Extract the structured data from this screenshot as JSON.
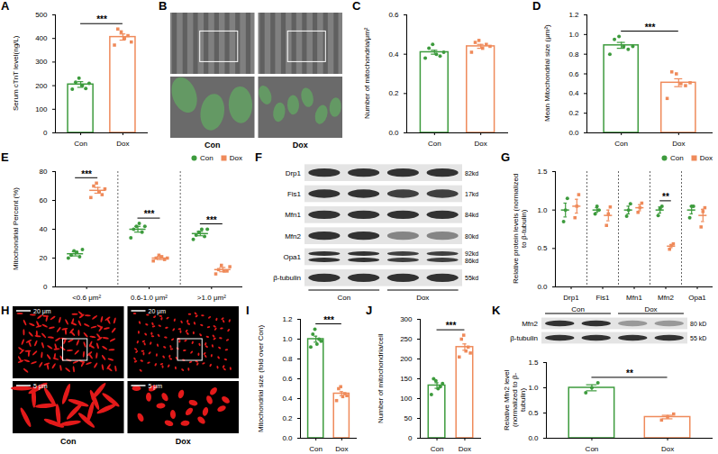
{
  "chart_data": [
    {
      "panel": "A",
      "type": "bar",
      "ylabel": "Serum cTnT level(ng/L)",
      "categories": [
        "Con",
        "Dox"
      ],
      "values": [
        205,
        406
      ],
      "errors": [
        12,
        13
      ],
      "points": [
        [
          185,
          215,
          232,
          200,
          188,
          210
        ],
        [
          372,
          440,
          428,
          400,
          412,
          385
        ]
      ],
      "colors": [
        "#3d9b3d",
        "#ef8a5a"
      ],
      "ylim": [
        0,
        500
      ],
      "yticks": [
        0,
        100,
        200,
        300,
        400,
        500
      ],
      "annotations": [
        {
          "text": "***"
        }
      ]
    },
    {
      "panel": "C",
      "type": "bar",
      "ylabel": "Number of mitochondria/μm²",
      "categories": [
        "Con",
        "Dox"
      ],
      "values": [
        0.41,
        0.44
      ],
      "errors": [
        0.01,
        0.01
      ],
      "points": [
        [
          0.38,
          0.43,
          0.45,
          0.4,
          0.39,
          0.41
        ],
        [
          0.41,
          0.46,
          0.47,
          0.43,
          0.45,
          0.44
        ]
      ],
      "colors": [
        "#3d9b3d",
        "#ef8a5a"
      ],
      "ylim": [
        0,
        0.6
      ],
      "yticks": [
        {
          "value": 0,
          "label": "0.0"
        },
        0.2,
        0.4,
        0.6
      ]
    },
    {
      "panel": "D",
      "type": "bar",
      "ylabel": "Mean Mitochondrial size (μm²)",
      "categories": [
        "Con",
        "Dox"
      ],
      "values": [
        0.89,
        0.51
      ],
      "errors": [
        0.03,
        0.04
      ],
      "points": [
        [
          0.8,
          0.95,
          0.98,
          0.88,
          0.85,
          0.88
        ],
        [
          0.35,
          0.62,
          0.6,
          0.5,
          0.48,
          0.51
        ]
      ],
      "colors": [
        "#3d9b3d",
        "#ef8a5a"
      ],
      "ylim": [
        0,
        1.2
      ],
      "yticks": [
        {
          "value": 0,
          "label": "0.0"
        },
        0.2,
        0.4,
        0.6,
        0.8,
        {
          "value": 1,
          "label": "1.0"
        },
        1.2
      ],
      "annotations": [
        {
          "text": "***"
        }
      ]
    },
    {
      "panel": "E",
      "type": "dot",
      "ylabel": "Mitochondrial Percent (%)",
      "categories": [
        "<0.6 μm²",
        "0.6-1.0 μm²",
        ">1.0 μm²"
      ],
      "series": [
        {
          "name": "Con",
          "color": "#3d9b3d",
          "marker": "circle",
          "values": [
            23,
            40,
            37
          ],
          "errors": [
            1.5,
            2,
            1.5
          ],
          "points": [
            [
              20,
              22,
              25,
              24,
              21,
              26
            ],
            [
              34,
              40,
              42,
              44,
              38,
              42
            ],
            [
              33,
              36,
              38,
              40,
              35,
              40
            ]
          ]
        },
        {
          "name": "Dox",
          "color": "#ef8a5a",
          "marker": "square",
          "values": [
            67,
            20,
            12
          ],
          "errors": [
            2,
            1,
            1.5
          ],
          "points": [
            [
              62,
              70,
              72,
              66,
              64,
              68
            ],
            [
              18,
              20,
              22,
              21,
              19,
              20
            ],
            [
              9,
              12,
              15,
              11,
              11,
              14
            ]
          ]
        }
      ],
      "legend": "top-right",
      "ylim": [
        0,
        80
      ],
      "yticks": [
        0,
        20,
        40,
        60,
        80
      ],
      "annotations": [
        {
          "category": "<0.6 μm²",
          "text": "***"
        },
        {
          "category": "0.6-1.0 μm²",
          "text": "***"
        },
        {
          "category": ">1.0 μm²",
          "text": "***"
        }
      ]
    },
    {
      "panel": "G",
      "type": "dot",
      "ylabel": "Relative protein levels (normalized to β-tubulin)",
      "categories": [
        "Drp1",
        "Fis1",
        "Mfn1",
        "Mfn2",
        "Opa1"
      ],
      "series": [
        {
          "name": "Con",
          "color": "#3d9b3d",
          "marker": "circle",
          "values": [
            1.0,
            1.0,
            1.0,
            1.0,
            1.0
          ],
          "errors": [
            0.09,
            0.03,
            0.05,
            0.04,
            0.05
          ],
          "points": [
            [
              0.85,
              1.0,
              1.15
            ],
            [
              0.95,
              1.05,
              1.0
            ],
            [
              0.92,
              1.0,
              1.08
            ],
            [
              0.93,
              1.02,
              1.05
            ],
            [
              0.9,
              1.05,
              1.05
            ]
          ]
        },
        {
          "name": "Dox",
          "color": "#ef8a5a",
          "marker": "square",
          "values": [
            1.05,
            0.93,
            1.03,
            0.53,
            0.93
          ],
          "errors": [
            0.09,
            0.07,
            0.04,
            0.02,
            0.08
          ],
          "points": [
            [
              0.9,
              1.05,
              1.2
            ],
            [
              0.8,
              0.95,
              1.04
            ],
            [
              0.97,
              1.03,
              1.09
            ],
            [
              0.49,
              0.54,
              0.56
            ],
            [
              0.78,
              0.98,
              1.03
            ]
          ]
        }
      ],
      "legend": "top-right",
      "ylim": [
        0,
        1.5
      ],
      "yticks": [
        {
          "value": 0,
          "label": "0.0"
        },
        0.5,
        {
          "value": 1,
          "label": "1.0"
        },
        1.5
      ],
      "annotations": [
        {
          "category": "Mfn2",
          "text": "**"
        }
      ]
    },
    {
      "panel": "I",
      "type": "bar",
      "ylabel": "Mitochondrial size (fold over Con)",
      "categories": [
        "Con",
        "Dox"
      ],
      "values": [
        1.0,
        0.45
      ],
      "errors": [
        0.03,
        0.02
      ],
      "points": [
        [
          0.92,
          1.05,
          1.1,
          0.95,
          1.0,
          0.98
        ],
        [
          0.38,
          0.5,
          0.52,
          0.42,
          0.45,
          0.43
        ]
      ],
      "colors": [
        "#3d9b3d",
        "#ef8a5a"
      ],
      "ylim": [
        0,
        1.2
      ],
      "yticks": [
        {
          "value": 0,
          "label": "0.0"
        },
        0.2,
        0.4,
        0.6,
        0.8,
        {
          "value": 1,
          "label": "1.0"
        },
        1.2
      ],
      "annotations": [
        {
          "text": "***"
        }
      ]
    },
    {
      "panel": "J",
      "type": "bar",
      "ylabel": "Number of mitochondria/cell",
      "categories": [
        "Con",
        "Dox"
      ],
      "values": [
        133,
        230
      ],
      "errors": [
        7,
        8
      ],
      "points": [
        [
          110,
          150,
          145,
          125,
          130,
          138
        ],
        [
          205,
          250,
          260,
          220,
          230,
          215
        ]
      ],
      "colors": [
        "#3d9b3d",
        "#ef8a5a"
      ],
      "ylim": [
        0,
        300
      ],
      "yticks": [
        0,
        50,
        100,
        150,
        200,
        250,
        300
      ],
      "annotations": [
        {
          "text": "***"
        }
      ]
    },
    {
      "panel": "K",
      "type": "bar",
      "ylabel": "Relative Mfn2 level (normalized to β-tubulin)",
      "categories": [
        "Con",
        "Dox"
      ],
      "values": [
        1.0,
        0.42
      ],
      "errors": [
        0.06,
        0.035
      ],
      "points": [
        [
          0.9,
          1.0,
          1.1
        ],
        [
          0.36,
          0.42,
          0.48
        ]
      ],
      "colors": [
        "#3d9b3d",
        "#ef8a5a"
      ],
      "ylim": [
        0,
        1.5
      ],
      "yticks": [
        {
          "value": 0,
          "label": "0.0"
        },
        0.5,
        {
          "value": 1,
          "label": "1.0"
        },
        1.5
      ],
      "annotations": [
        {
          "text": "**"
        }
      ]
    }
  ],
  "images": [
    {
      "panel": "B",
      "kind": "micrograph",
      "labels": [
        "Con",
        "Dox"
      ]
    },
    {
      "panel": "F",
      "kind": "blot",
      "groups": [
        "Con",
        "Dox"
      ],
      "rows": [
        {
          "label": "Drp1",
          "size": [
            "82kd"
          ]
        },
        {
          "label": "Fis1",
          "size": [
            "17kd"
          ]
        },
        {
          "label": "Mfn1",
          "size": [
            "84kd"
          ]
        },
        {
          "label": "Mfn2",
          "size": [
            "80kd"
          ]
        },
        {
          "label": "Opa1",
          "size": [
            "92kd",
            "86kd"
          ]
        },
        {
          "label": "β-tubulin",
          "size": [
            "55kd"
          ]
        }
      ]
    },
    {
      "panel": "H",
      "kind": "fluorescence",
      "labels": [
        "Con",
        "Dox"
      ],
      "scale_bars": [
        "20 μm",
        "5 μm"
      ]
    },
    {
      "panel": "K",
      "kind": "blot",
      "groups": [
        "Con",
        "Dox"
      ],
      "rows": [
        {
          "label": "Mfn2",
          "size": [
            "80 kD"
          ]
        },
        {
          "label": "β-tubulin",
          "size": [
            "55 kD"
          ]
        }
      ]
    }
  ]
}
